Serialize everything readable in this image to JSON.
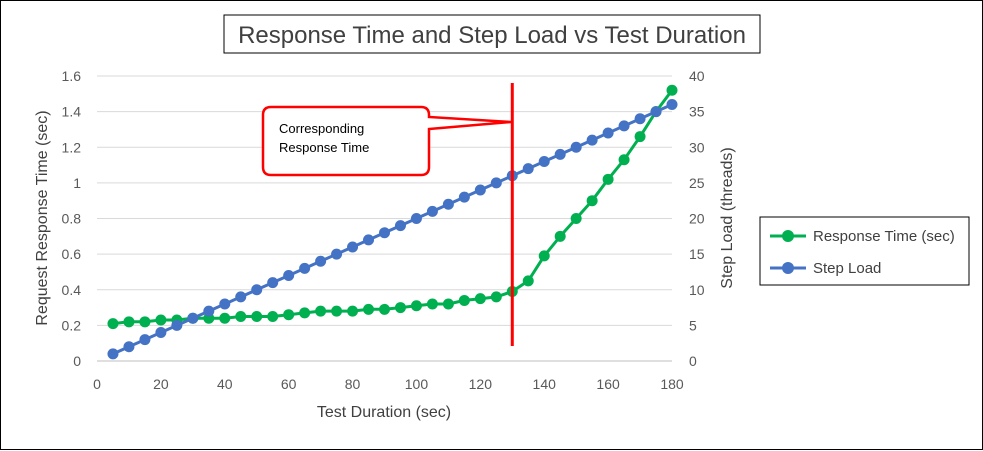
{
  "chart_data": {
    "type": "line",
    "title": "Response Time and Step Load vs Test Duration",
    "xlabel": "Test Duration (sec)",
    "ylabel": "Request Response Time (sec)",
    "y2label": "Step Load (threads)",
    "xlim": [
      0,
      180
    ],
    "ylim": [
      0,
      1.6
    ],
    "y2lim": [
      0,
      40
    ],
    "xticks": [
      "0",
      "20",
      "40",
      "60",
      "80",
      "100",
      "120",
      "140",
      "160",
      "180"
    ],
    "yticks": [
      "0",
      "0.2",
      "0.4",
      "0.6",
      "0.8",
      "1",
      "1.2",
      "1.4",
      "1.6"
    ],
    "y2ticks": [
      "0",
      "5",
      "10",
      "15",
      "20",
      "25",
      "30",
      "35",
      "40"
    ],
    "grid": true,
    "legend_position": "right",
    "series": [
      {
        "name": "Response Time (sec)",
        "axis": "left",
        "color": "#00b050",
        "x": [
          5,
          10,
          15,
          20,
          25,
          30,
          35,
          40,
          45,
          50,
          55,
          60,
          65,
          70,
          75,
          80,
          85,
          90,
          95,
          100,
          105,
          110,
          115,
          120,
          125,
          130,
          135,
          140,
          145,
          150,
          155,
          160,
          165,
          170,
          175,
          180
        ],
        "values": [
          0.21,
          0.22,
          0.22,
          0.23,
          0.23,
          0.24,
          0.24,
          0.24,
          0.25,
          0.25,
          0.25,
          0.26,
          0.27,
          0.28,
          0.28,
          0.28,
          0.29,
          0.29,
          0.3,
          0.31,
          0.32,
          0.32,
          0.34,
          0.35,
          0.36,
          0.39,
          0.45,
          0.59,
          0.7,
          0.8,
          0.9,
          1.02,
          1.13,
          1.26,
          1.4,
          1.52
        ]
      },
      {
        "name": "Step Load",
        "axis": "right",
        "color": "#4472c4",
        "x": [
          5,
          10,
          15,
          20,
          25,
          30,
          35,
          40,
          45,
          50,
          55,
          60,
          65,
          70,
          75,
          80,
          85,
          90,
          95,
          100,
          105,
          110,
          115,
          120,
          125,
          130,
          135,
          140,
          145,
          150,
          155,
          160,
          165,
          170,
          175,
          180
        ],
        "values": [
          1,
          2,
          3,
          4,
          5,
          6,
          7,
          8,
          9,
          10,
          11,
          12,
          13,
          14,
          15,
          16,
          17,
          18,
          19,
          20,
          21,
          22,
          23,
          24,
          25,
          26,
          27,
          28,
          29,
          30,
          31,
          32,
          33,
          34,
          35,
          36
        ]
      }
    ],
    "marker_line": {
      "x": 130,
      "color": "#ff0000"
    },
    "annotation": {
      "lines": [
        "Corresponding",
        "Response Time"
      ],
      "border_color": "#ff0000"
    }
  }
}
